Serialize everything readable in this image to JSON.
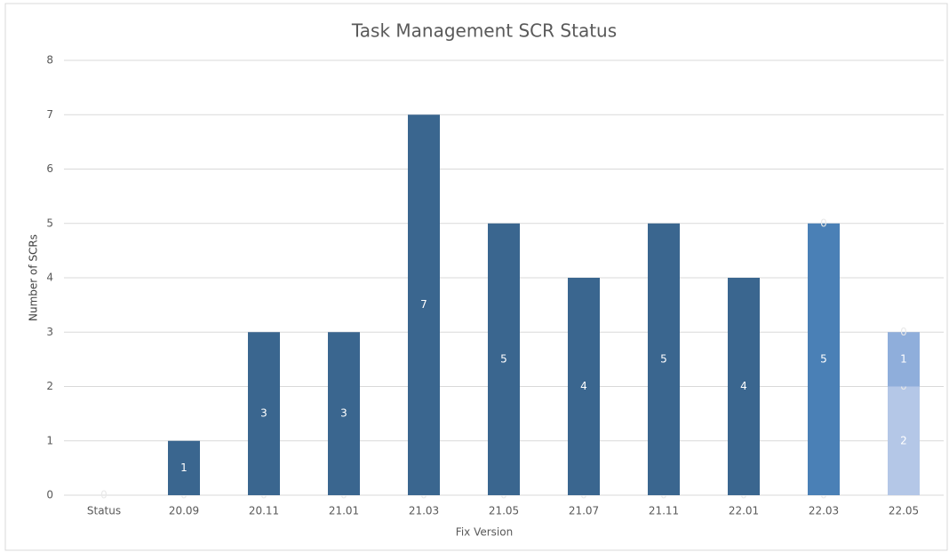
{
  "chart_data": {
    "type": "stacked_bar",
    "title": "Task Management SCR Status",
    "x_label": "Fix Version",
    "y_label": "Number of SCRs",
    "categories": [
      "Status",
      "20.09",
      "20.11",
      "21.01",
      "21.03",
      "21.05",
      "21.07",
      "21.11",
      "22.01",
      "22.03",
      "22.05"
    ],
    "series": [
      {
        "color": "#b4c7e7",
        "values": [
          0,
          0,
          0,
          0,
          0,
          0,
          0,
          0,
          0,
          0,
          2
        ]
      },
      {
        "color": "#3a668f",
        "values": [
          null,
          1,
          3,
          3,
          7,
          5,
          4,
          5,
          4,
          null,
          null
        ]
      },
      {
        "color": "#4a80b6",
        "values": [
          null,
          null,
          null,
          null,
          null,
          null,
          null,
          null,
          null,
          5,
          0
        ]
      },
      {
        "color": "#8faedb",
        "values": [
          null,
          null,
          null,
          null,
          null,
          null,
          null,
          null,
          null,
          null,
          1
        ]
      },
      {
        "color": "#6f95c8",
        "values": [
          null,
          null,
          null,
          null,
          null,
          null,
          null,
          null,
          null,
          0,
          0
        ]
      }
    ],
    "ylim": [
      0,
      8
    ],
    "yticks": [
      0,
      1,
      2,
      3,
      4,
      5,
      6,
      7,
      8
    ],
    "grid": true
  }
}
